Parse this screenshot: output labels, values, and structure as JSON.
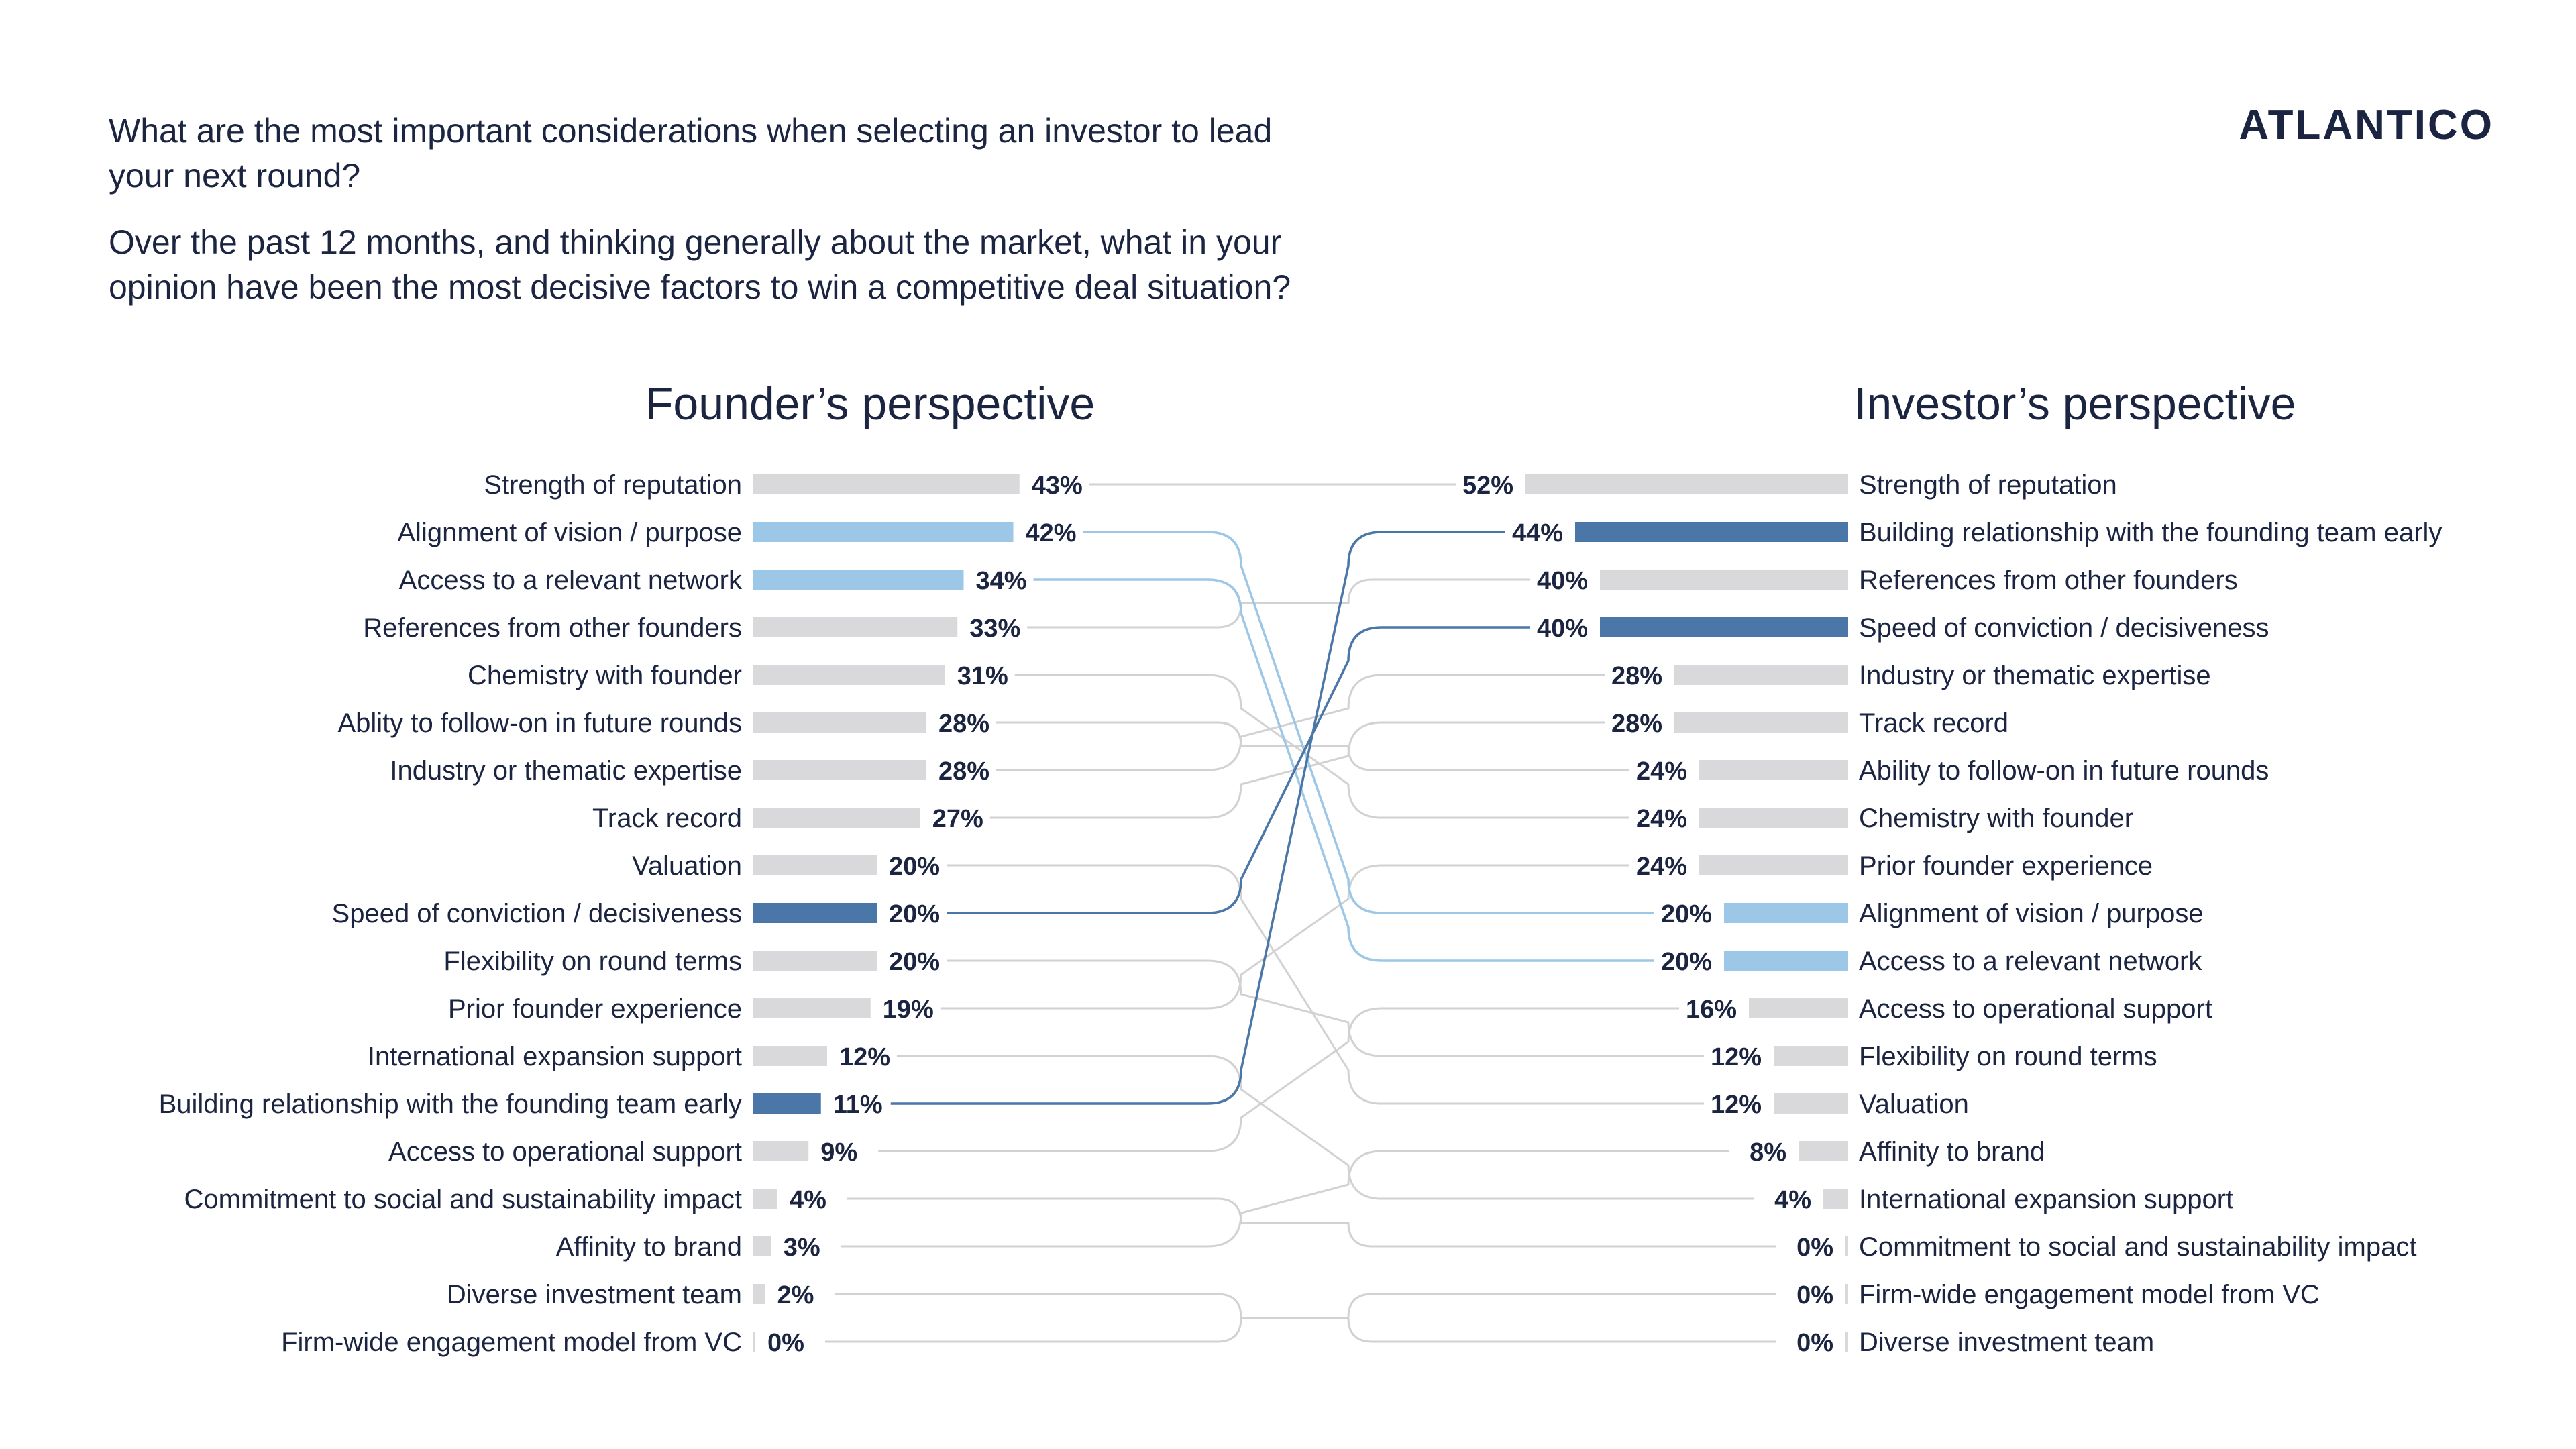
{
  "questions": [
    "What are the most important considerations when selecting an investor to lead",
    "your next round?",
    "Over the past 12 months, and thinking generally about the market, what in your",
    "opinion have been the most decisive factors to win a competitive deal situation?"
  ],
  "logo": {
    "text": "ATLANTICO"
  },
  "colors": {
    "neutral_bar": "#d9d9db",
    "neutral_line": "#d2d2d4",
    "highlight_dark": "#4a76a8",
    "highlight_light": "#9dc7e6",
    "text": "#1b2440"
  },
  "chart_data": {
    "type": "bar",
    "layout": "slope-linked diverging ranked bars",
    "left_panel": {
      "title": "Founder’s perspective",
      "categories": [
        "Strength of reputation",
        "Alignment of vision / purpose",
        "Access to a relevant network",
        "References from other founders",
        "Chemistry with founder",
        "Ablity to follow-on in future rounds",
        "Industry or thematic expertise",
        "Track record",
        "Valuation",
        "Speed of conviction / decisiveness",
        "Flexibility  on round terms",
        "Prior founder experience",
        "International expansion support",
        "Building relationship with the founding team early",
        "Access to operational support",
        "Commitment to social and sustainability impact",
        "Affinity to brand",
        "Diverse investment team",
        "Firm-wide engagement model from VC"
      ],
      "values": [
        43,
        42,
        34,
        33,
        31,
        28,
        28,
        27,
        20,
        20,
        20,
        19,
        12,
        11,
        9,
        4,
        3,
        2,
        0
      ],
      "value_labels": [
        "43%",
        "42%",
        "34%",
        "33%",
        "31%",
        "28%",
        "28%",
        "27%",
        "20%",
        "20%",
        "20%",
        "19%",
        "12%",
        "11%",
        "9%",
        "4%",
        "3%",
        "2%",
        "0%"
      ]
    },
    "right_panel": {
      "title": "Investor’s perspective",
      "categories": [
        "Strength of reputation",
        "Building relationship with the founding team early",
        "References from other founders",
        "Speed of conviction / decisiveness",
        "Industry or thematic expertise",
        "Track record",
        "Ability to follow-on in future rounds",
        "Chemistry with founder",
        "Prior founder experience",
        "Alignment of vision / purpose",
        "Access to a relevant network",
        "Access to operational support",
        "Flexibility on round terms",
        "Valuation",
        "Affinity to brand",
        "International expansion support",
        "Commitment to social and sustainability impact",
        "Firm-wide engagement model from VC",
        "Diverse investment team"
      ],
      "values": [
        52,
        44,
        40,
        40,
        28,
        28,
        24,
        24,
        24,
        20,
        20,
        16,
        12,
        12,
        8,
        4,
        0,
        0,
        0
      ],
      "value_labels": [
        "52%",
        "44%",
        "40%",
        "40%",
        "28%",
        "28%",
        "24%",
        "24%",
        "24%",
        "20%",
        "20%",
        "16%",
        "12%",
        "12%",
        "8%",
        "4%",
        "0%",
        "0%",
        "0%"
      ]
    },
    "links": [
      {
        "from": 0,
        "to": 0,
        "style": "neutral"
      },
      {
        "from": 1,
        "to": 9,
        "style": "light"
      },
      {
        "from": 2,
        "to": 10,
        "style": "light"
      },
      {
        "from": 3,
        "to": 2,
        "style": "neutral"
      },
      {
        "from": 4,
        "to": 7,
        "style": "neutral"
      },
      {
        "from": 5,
        "to": 6,
        "style": "neutral"
      },
      {
        "from": 6,
        "to": 4,
        "style": "neutral"
      },
      {
        "from": 7,
        "to": 5,
        "style": "neutral"
      },
      {
        "from": 8,
        "to": 13,
        "style": "neutral"
      },
      {
        "from": 9,
        "to": 3,
        "style": "dark"
      },
      {
        "from": 10,
        "to": 12,
        "style": "neutral"
      },
      {
        "from": 11,
        "to": 8,
        "style": "neutral"
      },
      {
        "from": 12,
        "to": 15,
        "style": "neutral"
      },
      {
        "from": 13,
        "to": 1,
        "style": "dark"
      },
      {
        "from": 14,
        "to": 11,
        "style": "neutral"
      },
      {
        "from": 15,
        "to": 16,
        "style": "neutral"
      },
      {
        "from": 16,
        "to": 14,
        "style": "neutral"
      },
      {
        "from": 17,
        "to": 18,
        "style": "neutral"
      },
      {
        "from": 18,
        "to": 17,
        "style": "neutral"
      }
    ],
    "highlights": {
      "dark": [
        "Speed of conviction / decisiveness",
        "Building relationship with the founding team early"
      ],
      "light": [
        "Alignment of vision / purpose",
        "Access to a relevant network"
      ]
    }
  }
}
